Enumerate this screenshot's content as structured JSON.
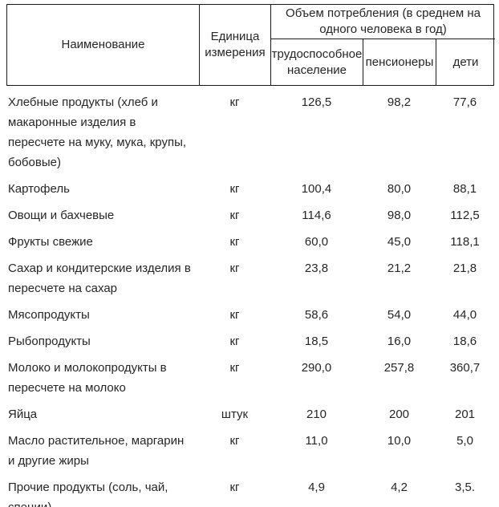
{
  "table": {
    "header": {
      "name": "Наименование",
      "unit": "Единица измерения",
      "group": "Объем потребления (в среднем на одного человека в год)",
      "sub": [
        "трудоспособное население",
        "пенсионеры",
        "дети"
      ]
    },
    "rows": [
      {
        "name": "Хлебные продукты (хлеб и макаронные изделия в пересчете на муку, мука, крупы, бобовые)",
        "unit": "кг",
        "working": "126,5",
        "pensioners": "98,2",
        "children": "77,6"
      },
      {
        "name": "Картофель",
        "unit": "кг",
        "working": "100,4",
        "pensioners": "80,0",
        "children": "88,1"
      },
      {
        "name": "Овощи и бахчевые",
        "unit": "кг",
        "working": "114,6",
        "pensioners": "98,0",
        "children": "112,5"
      },
      {
        "name": "Фрукты свежие",
        "unit": "кг",
        "working": "60,0",
        "pensioners": "45,0",
        "children": "118,1"
      },
      {
        "name": "Сахар и кондитерские изделия в пересчете на сахар",
        "unit": "кг",
        "working": "23,8",
        "pensioners": "21,2",
        "children": "21,8"
      },
      {
        "name": "Мясопродукты",
        "unit": "кг",
        "working": "58,6",
        "pensioners": "54,0",
        "children": "44,0"
      },
      {
        "name": "Рыбопродукты",
        "unit": "кг",
        "working": "18,5",
        "pensioners": "16,0",
        "children": "18,6"
      },
      {
        "name": "Молоко и молокопродукты в пересчете на молоко",
        "unit": "кг",
        "working": "290,0",
        "pensioners": "257,8",
        "children": "360,7"
      },
      {
        "name": "Яйца",
        "unit": "штук",
        "working": "210",
        "pensioners": "200",
        "children": "201"
      },
      {
        "name": "Масло растительное, маргарин и другие жиры",
        "unit": "кг",
        "working": "11,0",
        "pensioners": "10,0",
        "children": "5,0"
      },
      {
        "name": "Прочие продукты (соль, чай, специи)",
        "unit": "кг",
        "working": "4,9",
        "pensioners": "4,2",
        "children": "3,5."
      }
    ],
    "colors": {
      "border": "#1a1a1a",
      "text": "#262626",
      "background": "#ffffff"
    }
  }
}
